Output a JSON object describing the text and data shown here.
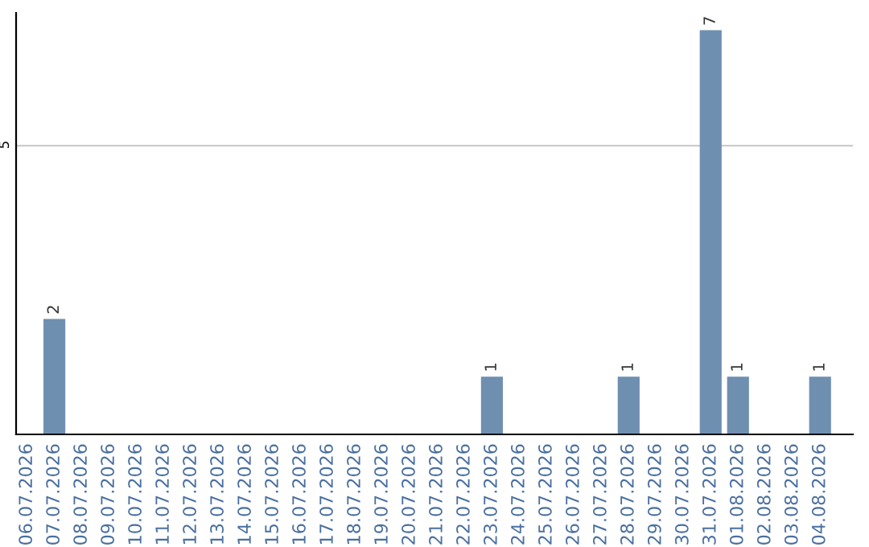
{
  "chart_data": {
    "type": "bar",
    "categories": [
      "06.07.2026",
      "07.07.2026",
      "08.07.2026",
      "09.07.2026",
      "10.07.2026",
      "11.07.2026",
      "12.07.2026",
      "13.07.2026",
      "14.07.2026",
      "15.07.2026",
      "16.07.2026",
      "17.07.2026",
      "18.07.2026",
      "19.07.2026",
      "20.07.2026",
      "21.07.2026",
      "22.07.2026",
      "23.07.2026",
      "24.07.2026",
      "25.07.2026",
      "26.07.2026",
      "27.07.2026",
      "28.07.2026",
      "29.07.2026",
      "30.07.2026",
      "31.07.2026",
      "01.08.2026",
      "02.08.2026",
      "03.08.2026",
      "04.08.2026"
    ],
    "values": [
      0,
      2,
      0,
      0,
      0,
      0,
      0,
      0,
      0,
      0,
      0,
      0,
      0,
      0,
      0,
      0,
      0,
      1,
      0,
      0,
      0,
      0,
      1,
      0,
      0,
      7,
      1,
      0,
      0,
      1
    ],
    "value_labels": [
      null,
      "2",
      null,
      null,
      null,
      null,
      null,
      null,
      null,
      null,
      null,
      null,
      null,
      null,
      null,
      null,
      null,
      "1",
      null,
      null,
      null,
      null,
      "1",
      null,
      null,
      "7",
      "1",
      null,
      null,
      "1"
    ],
    "color": "#6f8fb0",
    "ylim": [
      0,
      7.3
    ],
    "yticks": [
      5
    ],
    "grid": "y"
  }
}
